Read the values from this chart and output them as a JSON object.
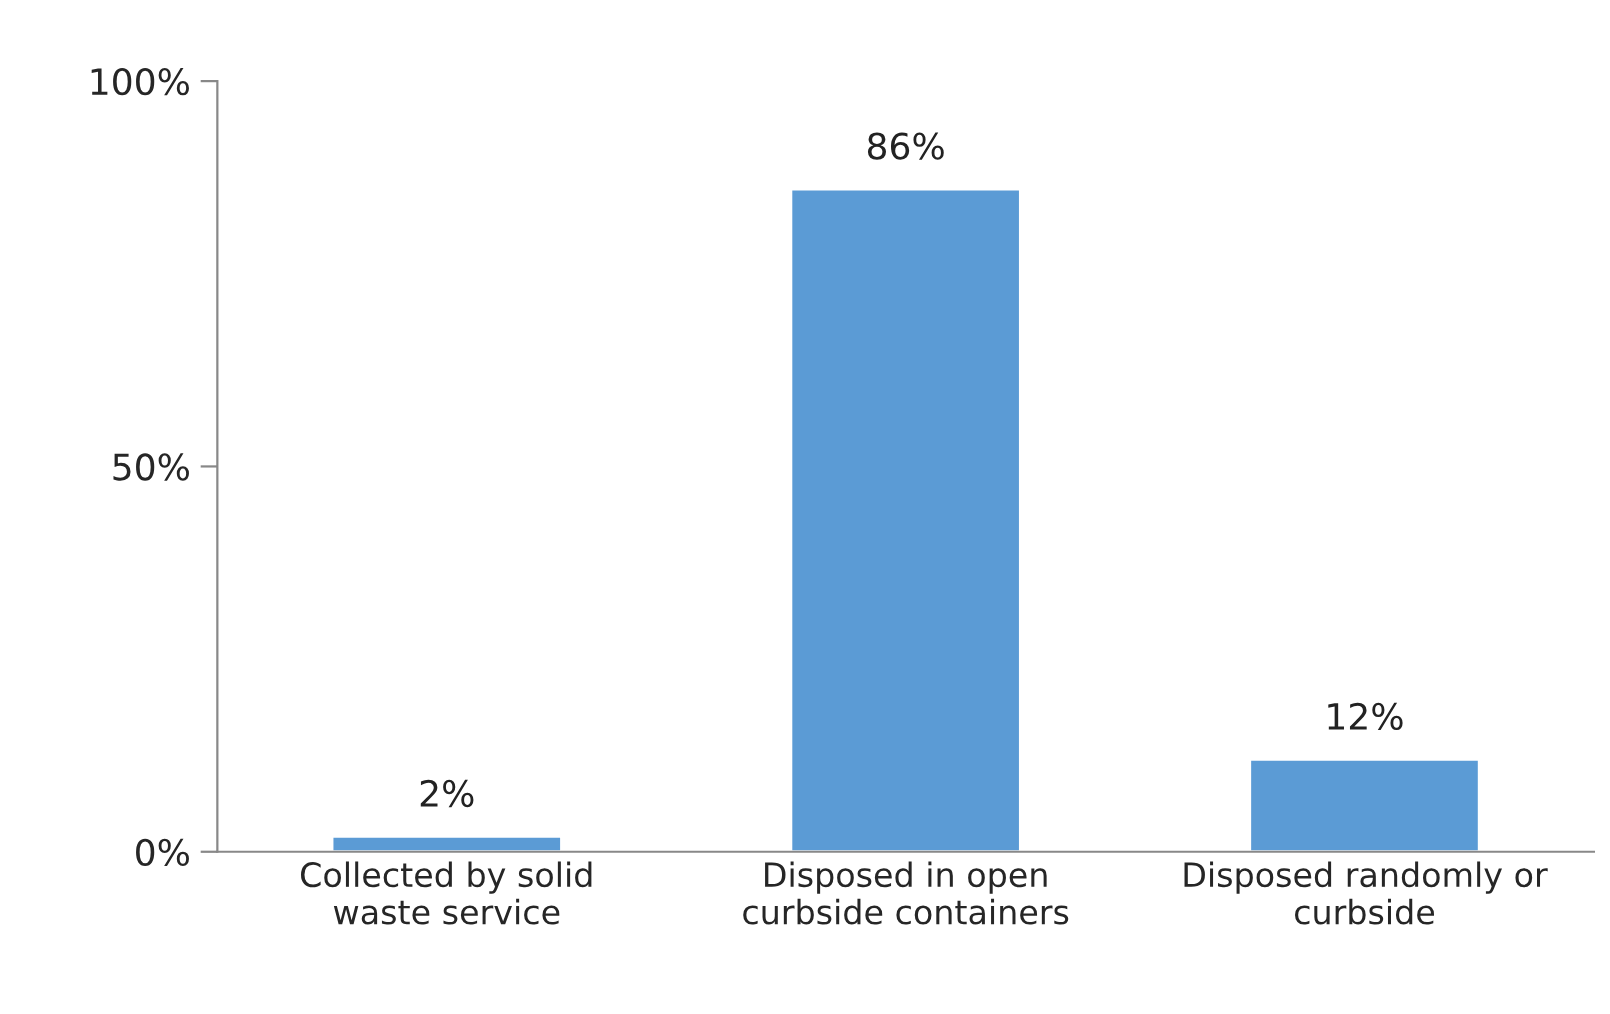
{
  "chart_data": {
    "type": "bar",
    "categories": [
      "Collected by solid\nwaste service",
      "Disposed in open\ncurbside containers",
      "Disposed randomly or\ncurbside"
    ],
    "values": [
      2,
      86,
      12
    ],
    "value_labels": [
      "2%",
      "86%",
      "12%"
    ],
    "color": "#5b9bd5",
    "ylim": [
      0,
      100
    ],
    "yticks": [
      {
        "value": 0,
        "label": "0%"
      },
      {
        "value": 50,
        "label": "50%"
      },
      {
        "value": 100,
        "label": "100%"
      }
    ]
  }
}
